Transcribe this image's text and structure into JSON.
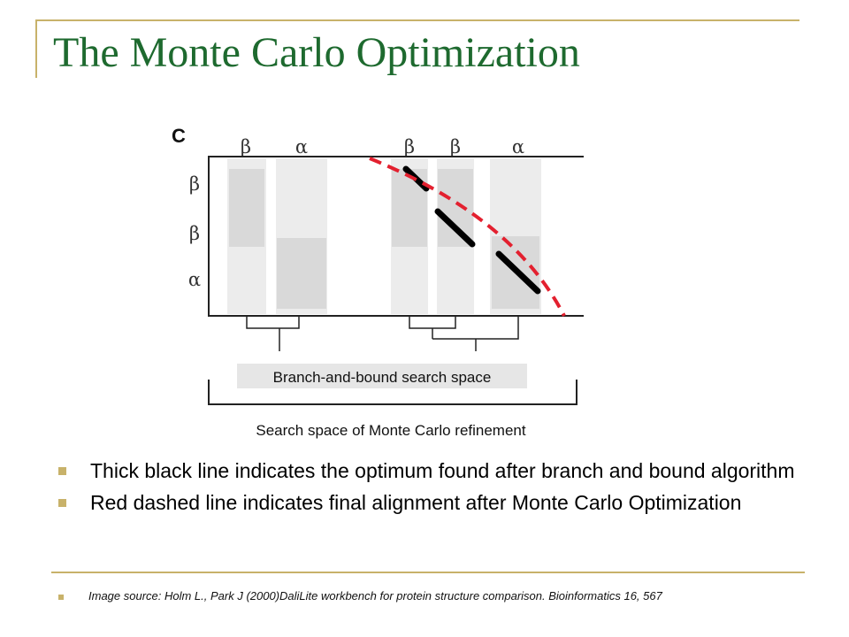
{
  "slide": {
    "title": "The Monte Carlo Optimization"
  },
  "diagram": {
    "panel_label": "C",
    "column_labels": [
      "β",
      "α",
      "β",
      "β",
      "α"
    ],
    "row_labels": [
      "β",
      "β",
      "α"
    ],
    "inner_bracket_label": "Branch-and-bound search space",
    "outer_bracket_label": "Search space of Monte Carlo refinement",
    "colors": {
      "optimum_line": "#000000",
      "final_alignment_line": "#e3202f",
      "band": "#ececec",
      "block": "#d9d9d9"
    }
  },
  "bullets": [
    "Thick black line indicates the optimum found after branch and bound algorithm",
    "Red dashed line indicates final alignment after Monte Carlo Optimization"
  ],
  "source": "Image source: Holm L., Park J (2000)DaliLite workbench for protein structure comparison. Bioinformatics 16, 567"
}
